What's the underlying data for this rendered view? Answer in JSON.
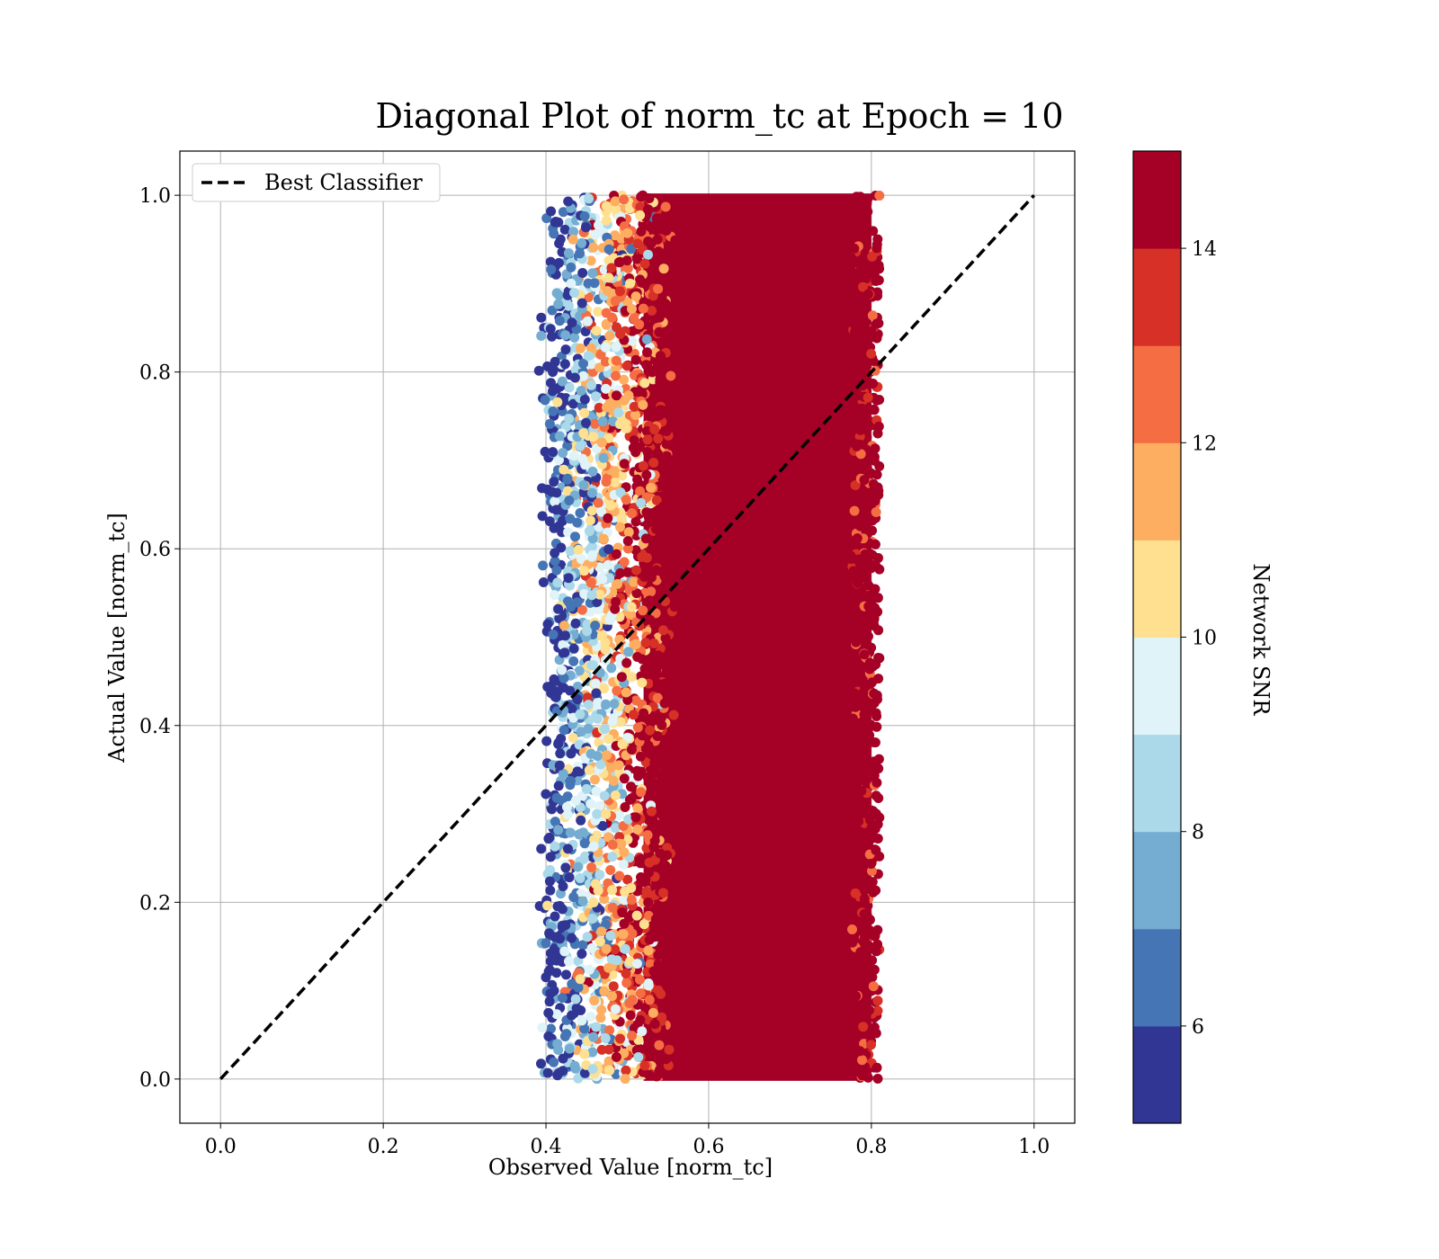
{
  "chart_data": {
    "type": "scatter",
    "title": "Diagonal Plot of norm_tc at Epoch = 10",
    "xlabel": "Observed Value [norm_tc]",
    "ylabel": "Actual Value [norm_tc]",
    "xlim": [
      -0.05,
      1.05
    ],
    "ylim": [
      -0.05,
      1.05
    ],
    "xticks": [
      0.0,
      0.2,
      0.4,
      0.6,
      0.8,
      1.0
    ],
    "yticks": [
      0.0,
      0.2,
      0.4,
      0.6,
      0.8,
      1.0
    ],
    "xtick_labels": [
      "0.0",
      "0.2",
      "0.4",
      "0.6",
      "0.8",
      "1.0"
    ],
    "ytick_labels": [
      "0.0",
      "0.2",
      "0.4",
      "0.6",
      "0.8",
      "1.0"
    ],
    "grid": true,
    "legend": {
      "placement": "upper-left",
      "entries": [
        {
          "label": "Best Classifier",
          "style": "dashed",
          "color": "#000000"
        }
      ]
    },
    "reference_line": {
      "name": "Best Classifier",
      "x": [
        0.0,
        1.0
      ],
      "y": [
        0.0,
        1.0
      ]
    },
    "scatter_summary": {
      "y_range": [
        0.0,
        1.0
      ],
      "x_range": [
        0.39,
        0.81
      ],
      "dense_core_x_range": [
        0.52,
        0.8
      ],
      "note_color_gradient": "color increases with x: low SNR near x~0.4, high SNR (>=14) for x>~0.52"
    },
    "colorbar": {
      "label": "Network SNR",
      "min": 5,
      "max": 15,
      "ticks": [
        6,
        8,
        10,
        12,
        14
      ],
      "tick_labels": [
        "6",
        "8",
        "10",
        "12",
        "14"
      ],
      "bins": [
        {
          "from": 5,
          "to": 6,
          "color": "#313695"
        },
        {
          "from": 6,
          "to": 7,
          "color": "#4575b4"
        },
        {
          "from": 7,
          "to": 8,
          "color": "#74add1"
        },
        {
          "from": 8,
          "to": 9,
          "color": "#abd9e9"
        },
        {
          "from": 9,
          "to": 10,
          "color": "#e0f3f8"
        },
        {
          "from": 10,
          "to": 11,
          "color": "#fee090"
        },
        {
          "from": 11,
          "to": 12,
          "color": "#fdae61"
        },
        {
          "from": 12,
          "to": 13,
          "color": "#f46d43"
        },
        {
          "from": 13,
          "to": 14,
          "color": "#d73027"
        },
        {
          "from": 14,
          "to": 15,
          "color": "#a50026"
        }
      ]
    }
  }
}
